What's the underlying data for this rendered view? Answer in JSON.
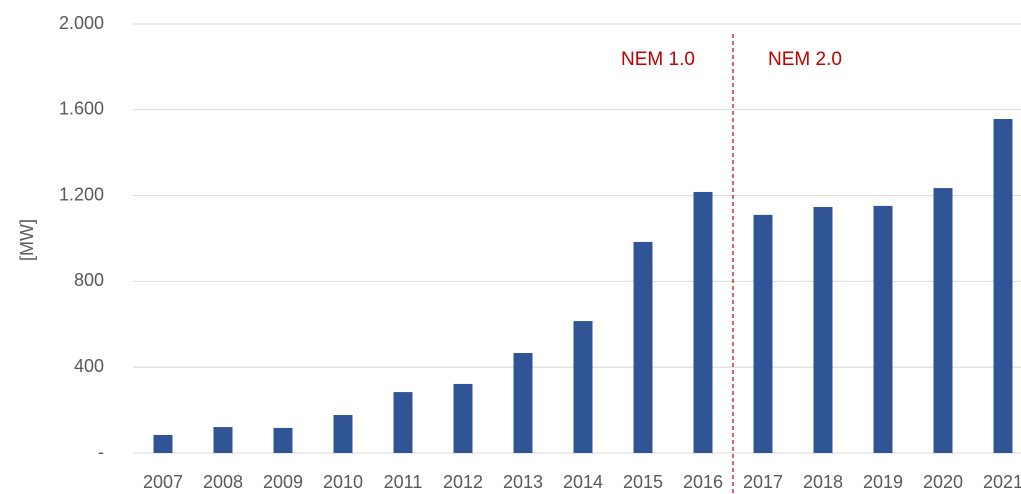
{
  "chart_data": {
    "type": "bar",
    "y_axis_label": "[MW]",
    "categories": [
      "2007",
      "2008",
      "2009",
      "2010",
      "2011",
      "2012",
      "2013",
      "2014",
      "2015",
      "2016",
      "2017",
      "2018",
      "2019",
      "2020",
      "2021"
    ],
    "values": [
      84,
      121,
      117,
      177,
      284,
      322,
      466,
      615,
      984,
      1217,
      1110,
      1147,
      1152,
      1235,
      1557
    ],
    "color": "#2f5597",
    "ylim": [
      0,
      2000
    ],
    "yticks": [
      {
        "value": 0,
        "label": "-"
      },
      400,
      800,
      {
        "value": 1200,
        "label": "1.200"
      },
      {
        "value": 1600,
        "label": "1.600"
      },
      {
        "value": 2000,
        "label": "2.000"
      }
    ],
    "grid": true,
    "annotations": [
      "NEM 1.0",
      "NEM 2.0"
    ]
  }
}
